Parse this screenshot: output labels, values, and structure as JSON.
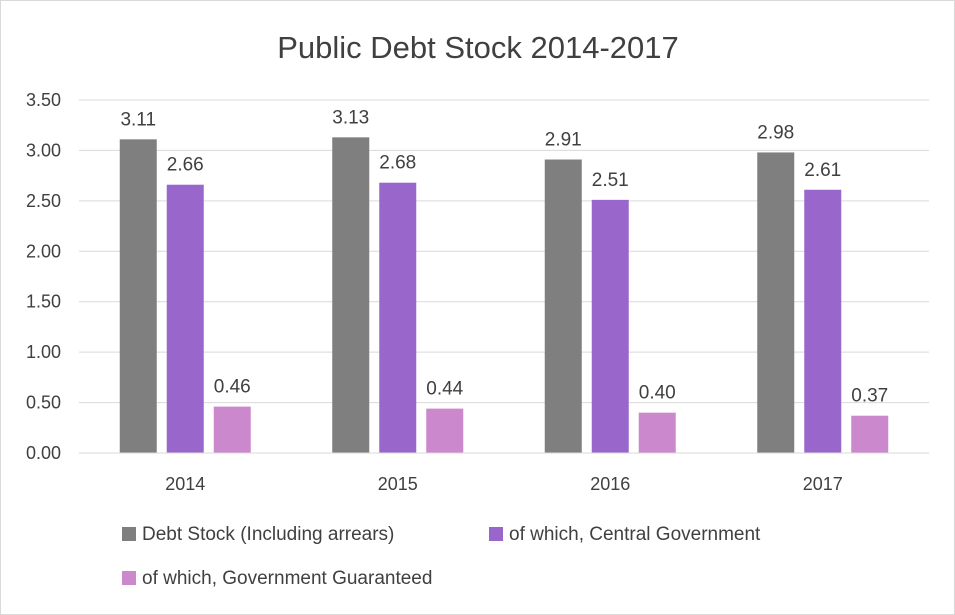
{
  "chart_data": {
    "type": "bar",
    "title": "Public Debt Stock 2014-2017",
    "categories": [
      "2014",
      "2015",
      "2016",
      "2017"
    ],
    "series": [
      {
        "name": "Debt Stock (Including arrears)",
        "values": [
          3.11,
          3.13,
          2.91,
          2.98
        ],
        "color": "#7f7f7f"
      },
      {
        "name": "of which, Central Government",
        "values": [
          2.66,
          2.68,
          2.51,
          2.61
        ],
        "color": "#9966cc"
      },
      {
        "name": "of which, Government Guaranteed",
        "values": [
          0.46,
          0.44,
          0.4,
          0.37
        ],
        "color": "#cc88cc"
      }
    ],
    "ylim": [
      0,
      3.5
    ],
    "yticks": [
      "0.00",
      "0.50",
      "1.00",
      "1.50",
      "2.00",
      "2.50",
      "3.00",
      "3.50"
    ],
    "data_labels": [
      [
        "3.11",
        "3.13",
        "2.91",
        "2.98"
      ],
      [
        "2.66",
        "2.68",
        "2.51",
        "2.61"
      ],
      [
        "0.46",
        "0.44",
        "0.40",
        "0.37"
      ]
    ],
    "grid": true,
    "legend_position": "bottom"
  }
}
